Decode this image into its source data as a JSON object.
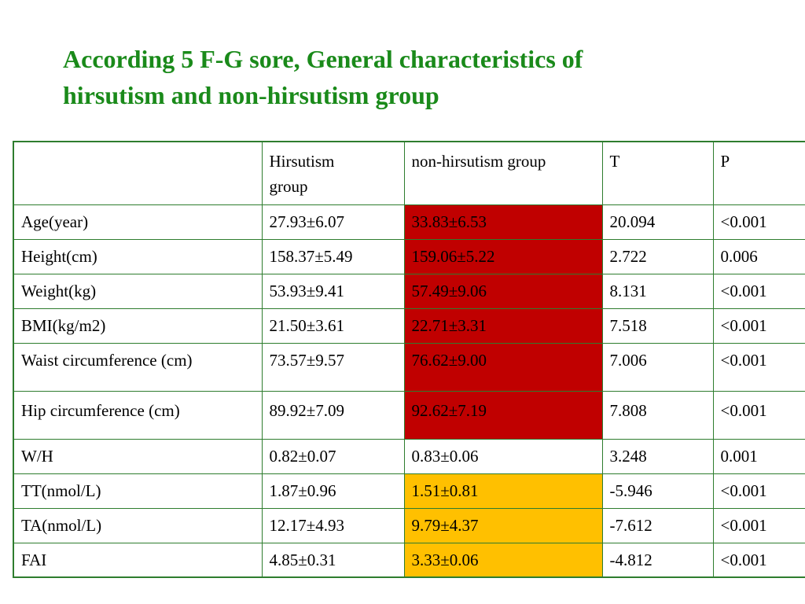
{
  "title": {
    "line1": "According 5 F-G sore, General characteristics of",
    "line2": "hirsutism and non-hirsutism group"
  },
  "colors": {
    "title": "#1a8a1a",
    "border": "#2e7d2e",
    "highlight_red": "#c00000",
    "highlight_orange": "#ffc000"
  },
  "table": {
    "headers": {
      "blank": "",
      "hirsutism_line1": "Hirsutism",
      "hirsutism_line2": "group",
      "non_hirsutism": "non-hirsutism group",
      "t": "T",
      "p": "P"
    },
    "rows": [
      {
        "label": "Age(year)",
        "hirsutism": "27.93±6.07",
        "non_hirsutism": "33.83±6.53",
        "t": "20.094",
        "p": "<0.001",
        "highlight": "red"
      },
      {
        "label": "Height(cm)",
        "hirsutism": "158.37±5.49",
        "non_hirsutism": "159.06±5.22",
        "t": "2.722",
        "p": "0.006",
        "highlight": "red"
      },
      {
        "label": "Weight(kg)",
        "hirsutism": "53.93±9.41",
        "non_hirsutism": "57.49±9.06",
        "t": "8.131",
        "p": "<0.001",
        "highlight": "red"
      },
      {
        "label": "BMI(kg/m2)",
        "hirsutism": "21.50±3.61",
        "non_hirsutism": "22.71±3.31",
        "t": "7.518",
        "p": "<0.001",
        "highlight": "red"
      },
      {
        "label": "Waist circumference (cm)",
        "hirsutism": "73.57±9.57",
        "non_hirsutism": "76.62±9.00",
        "t": "7.006",
        "p": "<0.001",
        "highlight": "red"
      },
      {
        "label": "Hip circumference (cm)",
        "hirsutism": "89.92±7.09",
        "non_hirsutism": "92.62±7.19",
        "t": "7.808",
        "p": "<0.001",
        "highlight": "red"
      },
      {
        "label": "W/H",
        "hirsutism": "0.82±0.07",
        "non_hirsutism": "0.83±0.06",
        "t": "3.248",
        "p": "0.001",
        "highlight": "none"
      },
      {
        "label": "TT(nmol/L)",
        "hirsutism": "1.87±0.96",
        "non_hirsutism": "1.51±0.81",
        "t": "-5.946",
        "p": "<0.001",
        "highlight": "orange"
      },
      {
        "label": "TA(nmol/L)",
        "hirsutism": "12.17±4.93",
        "non_hirsutism": "9.79±4.37",
        "t": "-7.612",
        "p": "<0.001",
        "highlight": "orange"
      },
      {
        "label": "FAI",
        "hirsutism": "4.85±0.31",
        "non_hirsutism": "3.33±0.06",
        "t": "-4.812",
        "p": "<0.001",
        "highlight": "orange"
      }
    ]
  }
}
